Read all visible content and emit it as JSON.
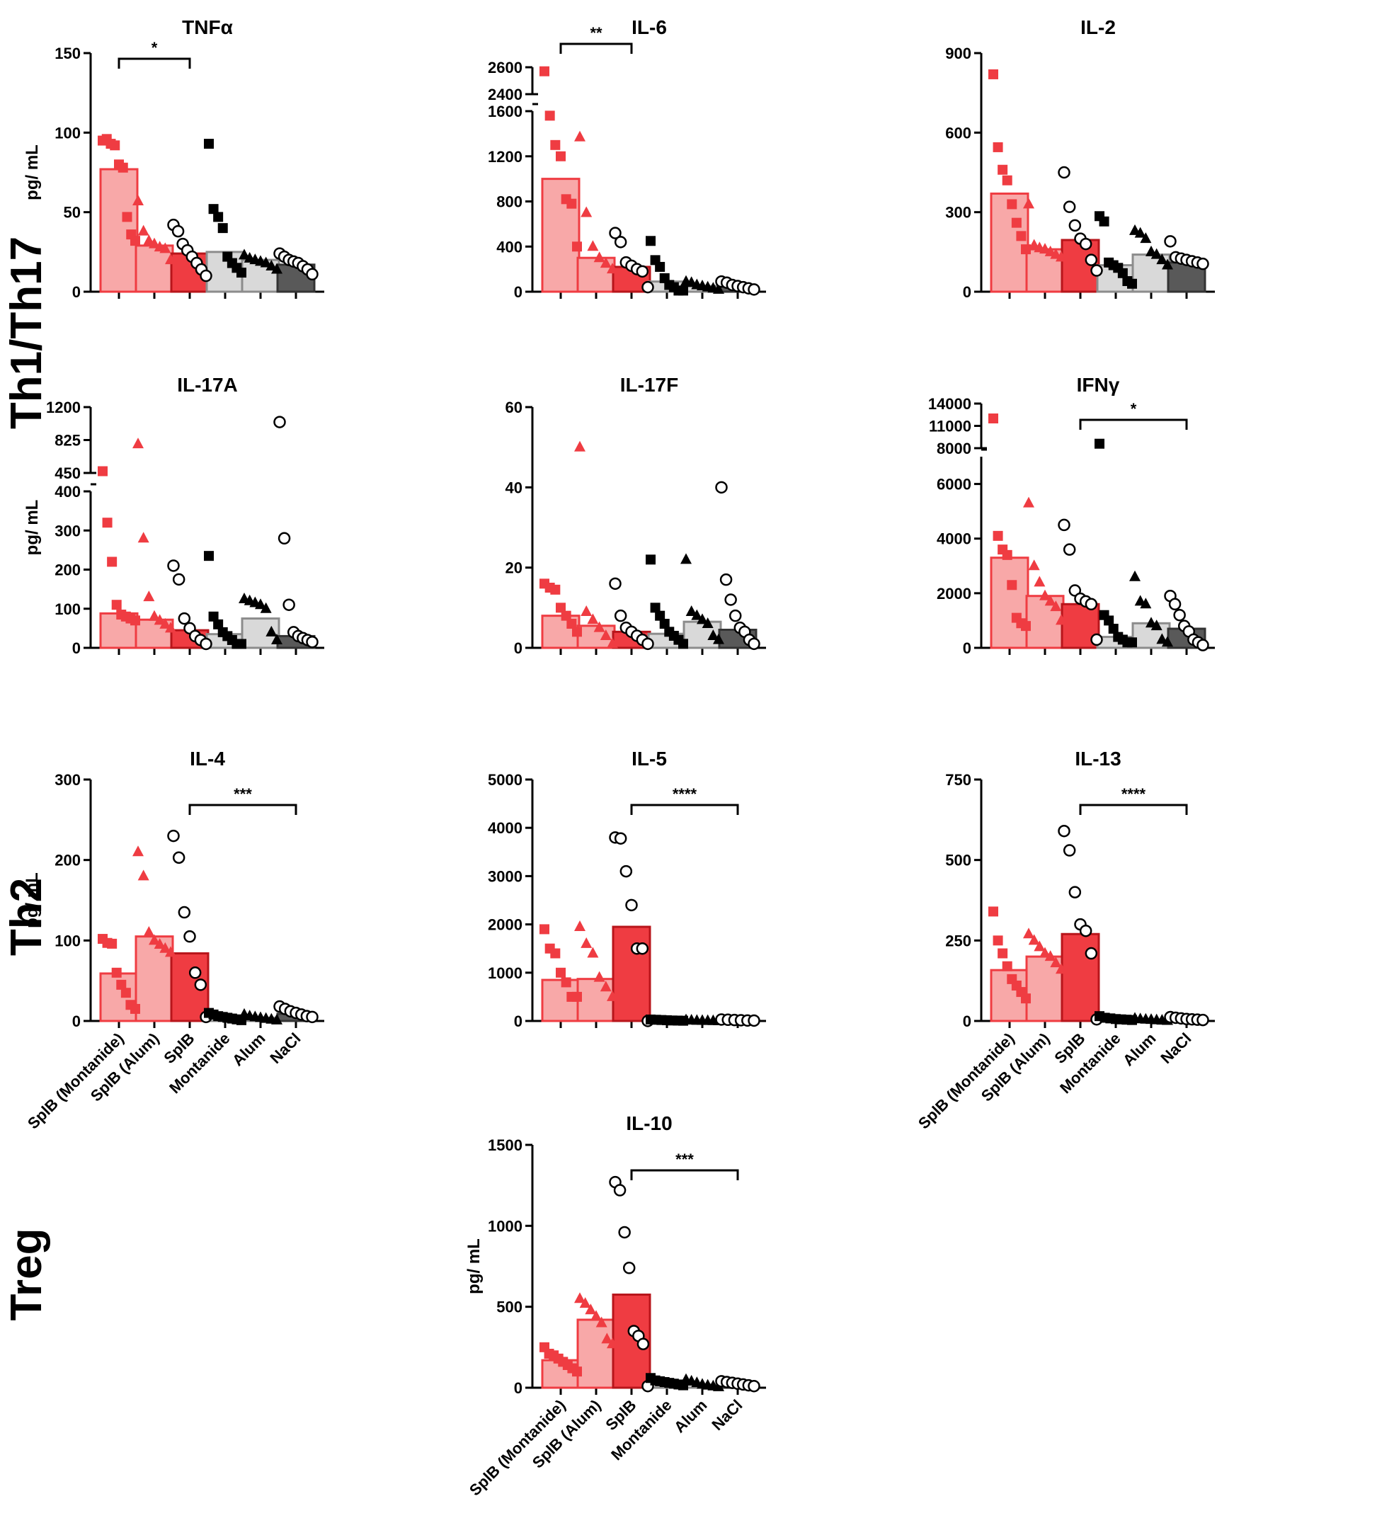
{
  "groups": [
    "SplB (Montanide)",
    "SplB (Alum)",
    "SplB",
    "Montanide",
    "Alum",
    "NaCl"
  ],
  "group_colors": [
    "#f8a8a8",
    "#f8a8a8",
    "#ef3c42",
    "#d9d9d9",
    "#d9d9d9",
    "#595959"
  ],
  "marker_colors": [
    "#ef3c42",
    "#ef3c42",
    "#ffffff",
    "#000000",
    "#000000",
    "#ffffff"
  ],
  "row_labels": {
    "th": "Th1/Th17",
    "th2": "Th2",
    "treg": "Treg"
  },
  "y_label": "pg/ mL",
  "chart_data": [
    {
      "type": "bar",
      "title": "TNFα",
      "ylabel": "pg/ mL",
      "ylim": [
        0,
        150
      ],
      "yticks": [
        0,
        50,
        100,
        150
      ],
      "ytick_labels": [
        "0",
        "50",
        "100",
        "150"
      ],
      "categories": [
        "SplB (Montanide)",
        "SplB (Alum)",
        "SplB",
        "Montanide",
        "Alum",
        "NaCl"
      ],
      "values": [
        77,
        29,
        24,
        25,
        20,
        17
      ],
      "points": [
        [
          95,
          96,
          93,
          92,
          80,
          78,
          47,
          36,
          32
        ],
        [
          57,
          38,
          32,
          30,
          28,
          27,
          20
        ],
        [
          42,
          38,
          30,
          26,
          22,
          18,
          14,
          10
        ],
        [
          93,
          52,
          47,
          40,
          22,
          18,
          15,
          12
        ],
        [
          23,
          21,
          20,
          19,
          18,
          16,
          14
        ],
        [
          24,
          22,
          20,
          19,
          18,
          16,
          14,
          11
        ]
      ],
      "significance": [
        {
          "from": "SplB (Montanide)",
          "to": "SplB",
          "label": "*"
        }
      ]
    },
    {
      "type": "bar",
      "title": "IL-6",
      "ylabel": "",
      "ylim": [
        0,
        2600
      ],
      "axis_break": {
        "lower_max": 1600,
        "upper_min": 2400,
        "upper_max": 2600
      },
      "yticks": [
        0,
        400,
        800,
        1200,
        1600,
        2400,
        2600
      ],
      "ytick_labels": [
        "0",
        "400",
        "800",
        "1200",
        "1600",
        "2400",
        "2600"
      ],
      "categories": [
        "SplB (Montanide)",
        "SplB (Alum)",
        "SplB",
        "Montanide",
        "Alum",
        "NaCl"
      ],
      "values": [
        1000,
        300,
        220,
        90,
        50,
        60
      ],
      "points": [
        [
          2570,
          1560,
          1300,
          1200,
          820,
          780,
          400
        ],
        [
          1370,
          700,
          400,
          300,
          250,
          200
        ],
        [
          520,
          440,
          260,
          230,
          200,
          180,
          40
        ],
        [
          450,
          280,
          220,
          120,
          60,
          40,
          10,
          10
        ],
        [
          90,
          80,
          60,
          50,
          40,
          30,
          20
        ],
        [
          90,
          80,
          60,
          50,
          40,
          30,
          20
        ]
      ],
      "significance": [
        {
          "from": "SplB (Montanide)",
          "to": "SplB",
          "label": "**"
        }
      ]
    },
    {
      "type": "bar",
      "title": "IL-2",
      "ylabel": "",
      "ylim": [
        0,
        900
      ],
      "yticks": [
        0,
        300,
        600,
        900
      ],
      "ytick_labels": [
        "0",
        "300",
        "600",
        "900"
      ],
      "categories": [
        "SplB (Montanide)",
        "SplB (Alum)",
        "SplB",
        "Montanide",
        "Alum",
        "NaCl"
      ],
      "values": [
        370,
        160,
        195,
        100,
        140,
        110
      ],
      "points": [
        [
          820,
          545,
          460,
          420,
          330,
          260,
          210,
          160
        ],
        [
          330,
          175,
          165,
          160,
          150,
          140,
          130
        ],
        [
          450,
          320,
          250,
          200,
          180,
          120,
          80
        ],
        [
          285,
          265,
          110,
          100,
          90,
          70,
          40,
          30
        ],
        [
          230,
          220,
          200,
          150,
          140,
          120,
          100
        ],
        [
          190,
          130,
          125,
          120,
          115,
          110,
          105
        ]
      ],
      "significance": []
    },
    {
      "type": "bar",
      "title": "IL-17A",
      "ylabel": "pg/ mL",
      "ylim": [
        0,
        1200
      ],
      "axis_break": {
        "lower_max": 400,
        "upper_min": 450,
        "upper_max": 1200
      },
      "yticks": [
        0,
        100,
        200,
        300,
        400,
        450,
        825,
        1200
      ],
      "ytick_labels": [
        "0",
        "100",
        "200",
        "300",
        "400",
        "450",
        "825",
        "1200"
      ],
      "categories": [
        "SplB (Montanide)",
        "SplB (Alum)",
        "SplB",
        "Montanide",
        "Alum",
        "NaCl"
      ],
      "values": [
        88,
        72,
        45,
        35,
        75,
        30
      ],
      "points": [
        [
          470,
          320,
          220,
          110,
          85,
          80,
          75,
          70
        ],
        [
          780,
          280,
          130,
          80,
          70,
          60,
          50
        ],
        [
          210,
          175,
          75,
          50,
          30,
          20,
          10
        ],
        [
          235,
          80,
          60,
          40,
          30,
          20,
          10,
          10
        ],
        [
          125,
          120,
          115,
          110,
          100,
          40,
          20
        ],
        [
          1030,
          280,
          110,
          40,
          30,
          25,
          20,
          15
        ]
      ],
      "significance": []
    },
    {
      "type": "bar",
      "title": "IL-17F",
      "ylabel": "",
      "ylim": [
        0,
        60
      ],
      "yticks": [
        0,
        20,
        40,
        60
      ],
      "ytick_labels": [
        "0",
        "20",
        "40",
        "60"
      ],
      "categories": [
        "SplB (Montanide)",
        "SplB (Alum)",
        "SplB",
        "Montanide",
        "Alum",
        "NaCl"
      ],
      "values": [
        8,
        5.5,
        4,
        3.5,
        6.5,
        4.5
      ],
      "points": [
        [
          16,
          15,
          14.5,
          10,
          8,
          6,
          4
        ],
        [
          50,
          9,
          7,
          5,
          3,
          1
        ],
        [
          16,
          8,
          5,
          4,
          3,
          2,
          1
        ],
        [
          22,
          10,
          8,
          6,
          4,
          3,
          2,
          1
        ],
        [
          22,
          9,
          8,
          7,
          6,
          3,
          2
        ],
        [
          40,
          17,
          12,
          8,
          5,
          4,
          2,
          1
        ]
      ],
      "significance": []
    },
    {
      "type": "bar",
      "title": "IFNγ",
      "ylabel": "",
      "ylim": [
        0,
        14000
      ],
      "axis_break": {
        "lower_max": 7000,
        "upper_min": 8000,
        "upper_max": 14000
      },
      "yticks": [
        0,
        2000,
        4000,
        6000,
        8000,
        11000,
        14000
      ],
      "ytick_labels": [
        "0",
        "2000",
        "4000",
        "6000",
        "8000",
        "11000",
        "14000"
      ],
      "categories": [
        "SplB (Montanide)",
        "SplB (Alum)",
        "SplB",
        "Montanide",
        "Alum",
        "NaCl"
      ],
      "values": [
        3300,
        1900,
        1600,
        400,
        900,
        700
      ],
      "points": [
        [
          12000,
          4100,
          3600,
          3400,
          2300,
          1100,
          900,
          800
        ],
        [
          5300,
          3000,
          2400,
          1900,
          1700,
          1500,
          1000
        ],
        [
          4500,
          3600,
          2100,
          1800,
          1700,
          1600,
          300
        ],
        [
          8600,
          1200,
          1000,
          700,
          400,
          300,
          200,
          200
        ],
        [
          2600,
          1700,
          1600,
          900,
          800,
          300,
          200
        ],
        [
          1900,
          1600,
          1200,
          800,
          600,
          300,
          200,
          100
        ]
      ],
      "significance": [
        {
          "from": "SplB",
          "to": "NaCl",
          "label": "*"
        }
      ]
    },
    {
      "type": "bar",
      "title": "IL-4",
      "ylabel": "pg/ mL",
      "ylim": [
        0,
        300
      ],
      "yticks": [
        0,
        100,
        200,
        300
      ],
      "ytick_labels": [
        "0",
        "100",
        "200",
        "300"
      ],
      "categories": [
        "SplB (Montanide)",
        "SplB (Alum)",
        "SplB",
        "Montanide",
        "Alum",
        "NaCl"
      ],
      "values": [
        59,
        105,
        84,
        6,
        4,
        9
      ],
      "points": [
        [
          102,
          97,
          96,
          60,
          45,
          35,
          20,
          15
        ],
        [
          210,
          180,
          110,
          100,
          95,
          90,
          85
        ],
        [
          230,
          203,
          135,
          105,
          60,
          45,
          5
        ],
        [
          10,
          8,
          6,
          5,
          4,
          3,
          2,
          1
        ],
        [
          8,
          6,
          5,
          4,
          3,
          2,
          1
        ],
        [
          18,
          15,
          12,
          10,
          8,
          6,
          5
        ]
      ],
      "significance": [
        {
          "from": "SplB",
          "to": "NaCl",
          "label": "***"
        }
      ]
    },
    {
      "type": "bar",
      "title": "IL-5",
      "ylabel": "",
      "ylim": [
        0,
        5000
      ],
      "yticks": [
        0,
        1000,
        2000,
        3000,
        4000,
        5000
      ],
      "ytick_labels": [
        "0",
        "1000",
        "2000",
        "3000",
        "4000",
        "5000"
      ],
      "categories": [
        "SplB (Montanide)",
        "SplB (Alum)",
        "SplB",
        "Montanide",
        "Alum",
        "NaCl"
      ],
      "values": [
        850,
        870,
        1950,
        20,
        10,
        20
      ],
      "points": [
        [
          1900,
          1500,
          1400,
          1000,
          800,
          500,
          500
        ],
        [
          1950,
          1600,
          1400,
          900,
          700,
          500
        ],
        [
          3800,
          3780,
          3100,
          2400,
          1500,
          1500,
          0
        ],
        [
          30,
          25,
          20,
          15,
          10,
          8,
          5
        ],
        [
          20,
          15,
          10,
          8,
          5,
          3,
          2
        ],
        [
          30,
          25,
          20,
          15,
          10,
          8
        ]
      ],
      "significance": [
        {
          "from": "SplB",
          "to": "NaCl",
          "label": "****"
        }
      ]
    },
    {
      "type": "bar",
      "title": "IL-13",
      "ylabel": "",
      "ylim": [
        0,
        750
      ],
      "yticks": [
        0,
        250,
        500,
        750
      ],
      "ytick_labels": [
        "0",
        "250",
        "500",
        "750"
      ],
      "categories": [
        "SplB (Montanide)",
        "SplB (Alum)",
        "SplB",
        "Montanide",
        "Alum",
        "NaCl"
      ],
      "values": [
        158,
        200,
        270,
        8,
        4,
        6
      ],
      "points": [
        [
          340,
          250,
          210,
          170,
          130,
          110,
          90,
          70
        ],
        [
          270,
          250,
          230,
          210,
          200,
          180,
          160
        ],
        [
          590,
          530,
          400,
          300,
          280,
          210,
          5
        ],
        [
          15,
          10,
          8,
          6,
          5,
          4,
          3
        ],
        [
          8,
          6,
          5,
          4,
          3,
          2,
          1
        ],
        [
          12,
          10,
          8,
          6,
          5,
          4,
          3
        ]
      ],
      "significance": [
        {
          "from": "SplB",
          "to": "NaCl",
          "label": "****"
        }
      ]
    },
    {
      "type": "bar",
      "title": "IL-10",
      "ylabel": "pg/ mL",
      "ylim": [
        0,
        1500
      ],
      "yticks": [
        0,
        500,
        1000,
        1500
      ],
      "ytick_labels": [
        "0",
        "500",
        "1000",
        "1500"
      ],
      "categories": [
        "SplB (Montanide)",
        "SplB (Alum)",
        "SplB",
        "Montanide",
        "Alum",
        "NaCl"
      ],
      "values": [
        170,
        420,
        575,
        35,
        20,
        30
      ],
      "points": [
        [
          250,
          210,
          200,
          180,
          160,
          140,
          120,
          100
        ],
        [
          550,
          520,
          480,
          440,
          400,
          300,
          270
        ],
        [
          1270,
          1220,
          960,
          740,
          350,
          320,
          270,
          10
        ],
        [
          60,
          45,
          40,
          35,
          30,
          25,
          20,
          15
        ],
        [
          50,
          40,
          30,
          20,
          15,
          10,
          5
        ],
        [
          40,
          35,
          30,
          25,
          20,
          15,
          10
        ]
      ],
      "significance": [
        {
          "from": "SplB",
          "to": "NaCl",
          "label": "***"
        }
      ]
    }
  ]
}
